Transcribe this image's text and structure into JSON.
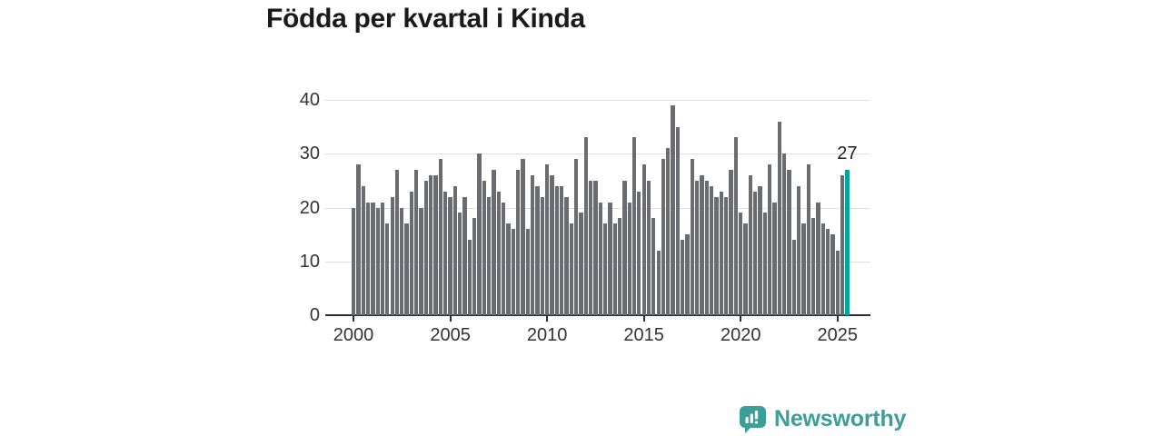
{
  "title": "Födda per kvartal i Kinda",
  "branding": {
    "logo_text": "Newsworthy",
    "logo_icon": "newsworthy-speech-bubble-bar-chart-icon",
    "logo_color": "#3b9e99"
  },
  "chart_data": {
    "type": "bar",
    "title": "Födda per kvartal i Kinda",
    "xlabel": "",
    "ylabel": "",
    "ylim": [
      0,
      40
    ],
    "y_ticks": [
      0,
      10,
      20,
      30,
      40
    ],
    "x_tick_labels": [
      "2000",
      "2005",
      "2010",
      "2015",
      "2020",
      "2025"
    ],
    "grid": "horizontal",
    "legend": "none",
    "period_start": "2000 Q1",
    "period_end": "2025 Q3",
    "frequency": "quarterly",
    "bar_color": "#6b6b72",
    "values": [
      20,
      28,
      24,
      21,
      21,
      20,
      21,
      17,
      22,
      27,
      20,
      17,
      23,
      27,
      20,
      25,
      26,
      26,
      29,
      23,
      22,
      24,
      19,
      22,
      14,
      18,
      30,
      25,
      22,
      27,
      23,
      21,
      17,
      16,
      27,
      29,
      16,
      26,
      24,
      22,
      28,
      26,
      24,
      24,
      22,
      17,
      29,
      19,
      33,
      25,
      25,
      21,
      17,
      21,
      17,
      18,
      25,
      21,
      33,
      23,
      28,
      25,
      18,
      12,
      29,
      31,
      39,
      35,
      14,
      15,
      29,
      25,
      26,
      25,
      24,
      22,
      23,
      22,
      27,
      33,
      19,
      17,
      26,
      23,
      24,
      19,
      28,
      21,
      36,
      30,
      27,
      14,
      24,
      17,
      28,
      18,
      21,
      17,
      16,
      15,
      12,
      26,
      27
    ],
    "highlight": {
      "index": 102,
      "value": 27,
      "label": "27",
      "color": "#00a59b"
    }
  }
}
